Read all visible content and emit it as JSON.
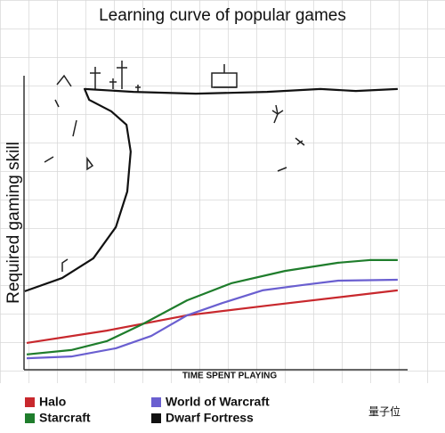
{
  "chart_data": {
    "type": "line",
    "title": "Learning curve of popular games",
    "y_label": "Required gaming skill",
    "x_label": "TIME SPENT PLAYING",
    "xlim": [
      0,
      100
    ],
    "ylim": [
      0,
      100
    ],
    "series": [
      {
        "name": "Halo",
        "color": "#c8282d",
        "x": [
          0.7,
          21.7,
          42.8,
          63.8,
          98.1
        ],
        "values": [
          9.1,
          13.3,
          18.5,
          21.8,
          27.0
        ]
      },
      {
        "name": "Starcraft",
        "color": "#1f7d2c",
        "x": [
          0.7,
          12.4,
          21.7,
          31.1,
          42.8,
          54.4,
          68.5,
          82.5,
          90.7,
          98.1
        ],
        "values": [
          5.2,
          6.7,
          9.7,
          15.5,
          23.6,
          29.4,
          33.6,
          36.4,
          37.3,
          37.3
        ]
      },
      {
        "name": "World of Warcraft",
        "color": "#6a5fd0",
        "x": [
          0.7,
          12.4,
          24.1,
          33.4,
          42.8,
          52.1,
          62.6,
          73.1,
          82.5,
          98.1
        ],
        "values": [
          3.9,
          4.5,
          7.3,
          11.5,
          18.5,
          22.7,
          27.0,
          28.8,
          30.3,
          30.6
        ]
      },
      {
        "name": "Dwarf Fortress",
        "color": "#111111",
        "x": [
          0.2,
          10,
          18.2,
          24.1,
          27.1,
          28,
          26.9,
          22.9,
          17.1,
          15.9,
          28.7,
          45.1,
          63.8,
          77.8,
          87.1,
          98.1
        ],
        "values": [
          26.7,
          31.2,
          37.9,
          48.5,
          60.6,
          74.2,
          83.3,
          87.9,
          91.8,
          95.5,
          94.5,
          93.9,
          94.5,
          95.5,
          94.8,
          95.5
        ]
      }
    ]
  },
  "watermark": "量子位"
}
